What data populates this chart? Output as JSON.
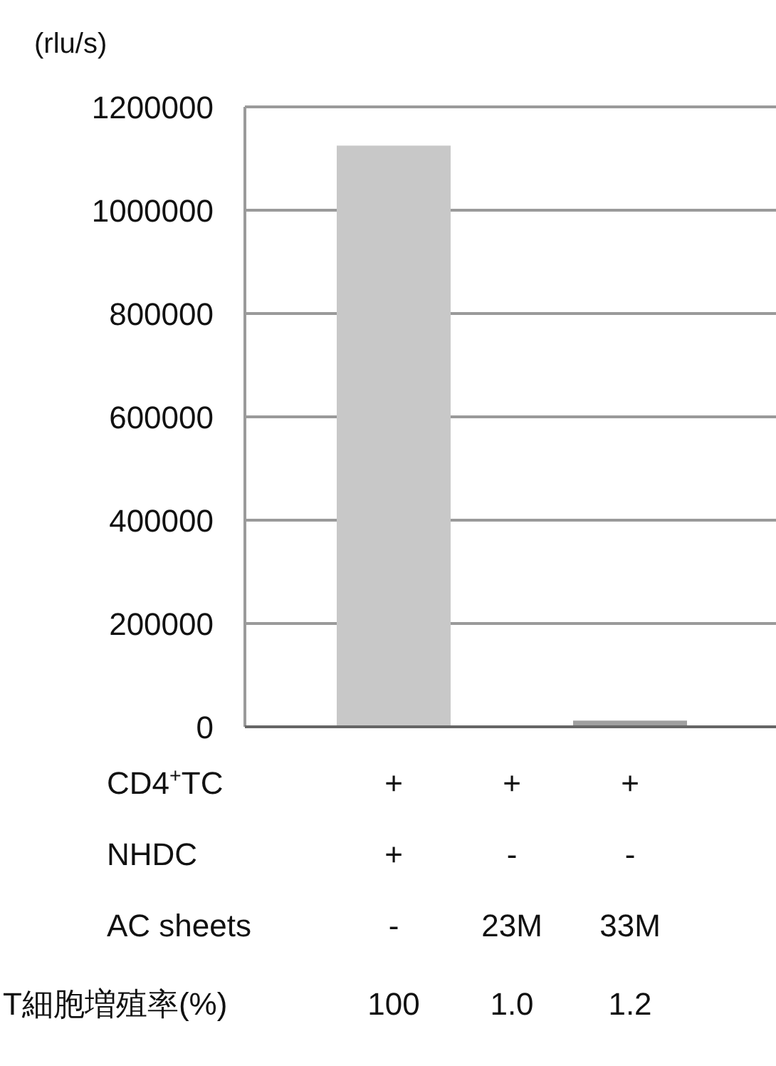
{
  "chart_data": {
    "type": "bar",
    "ylabel": "(rlu/s)",
    "categories": [
      null,
      null,
      null
    ],
    "values": [
      1125000,
      0,
      12000
    ],
    "colors": [
      "#c8c8c8",
      "#c8c8c8",
      "#a0a0a0"
    ],
    "ylim": [
      0,
      1200000
    ],
    "yticks": [
      0,
      200000,
      400000,
      600000,
      800000,
      1000000,
      1200000
    ],
    "grid": "y",
    "annotations": [
      "CD4$^{+}$TC",
      "+",
      "+",
      "+",
      "NHDC",
      "+",
      "-",
      "-",
      "AC sheets",
      "-",
      "23M",
      "33M",
      "T細胞増殖率(%)",
      "100",
      "1.0",
      "1.2"
    ]
  }
}
